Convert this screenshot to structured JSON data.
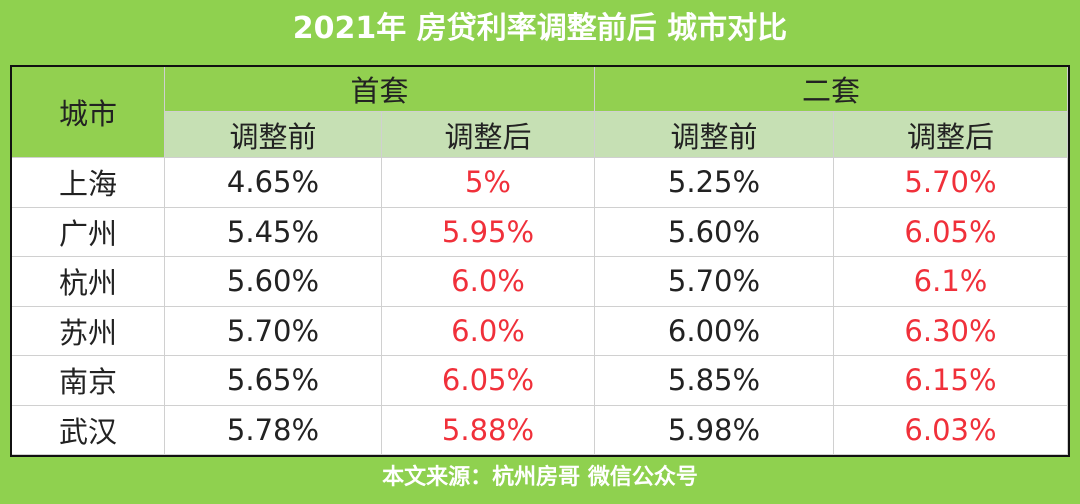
{
  "title": "2021年 房贷利率调整前后 城市对比",
  "table": {
    "header": {
      "corner": "城市",
      "groups": [
        "首套",
        "二套"
      ],
      "subheaders": [
        "调整前",
        "调整后",
        "调整前",
        "调整后"
      ]
    },
    "rows": [
      [
        "上海",
        "4.65%",
        "5%",
        "5.25%",
        "5.70%"
      ],
      [
        "广州",
        "5.45%",
        "5.95%",
        "5.60%",
        "6.05%"
      ],
      [
        "杭州",
        "5.60%",
        "6.0%",
        "5.70%",
        "6.1%"
      ],
      [
        "苏州",
        "5.70%",
        "6.0%",
        "6.00%",
        "6.30%"
      ],
      [
        "南京",
        "5.65%",
        "6.05%",
        "5.85%",
        "6.15%"
      ],
      [
        "武汉",
        "5.78%",
        "5.88%",
        "5.98%",
        "6.03%"
      ]
    ]
  },
  "footer": "本文来源：杭州房哥 微信公众号"
}
